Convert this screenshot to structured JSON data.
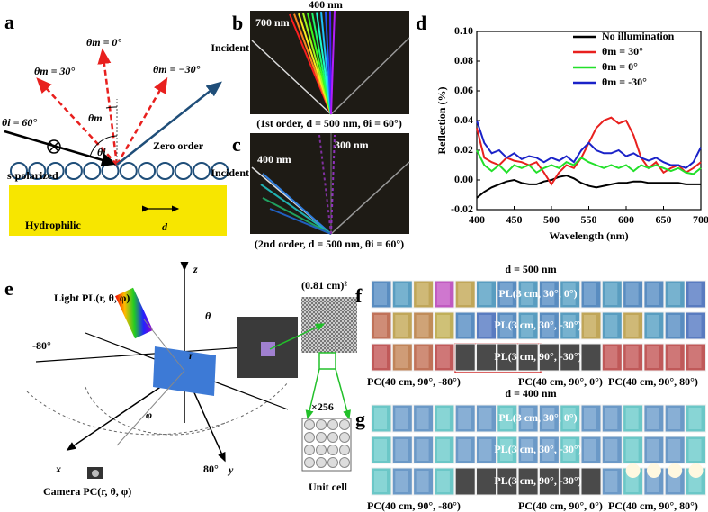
{
  "figure": {
    "panel_labels": [
      "a",
      "b",
      "c",
      "d",
      "e",
      "f",
      "g"
    ],
    "a": {
      "theta_m0": "θm = 0°",
      "theta_m30": "θm = 30°",
      "theta_mn30": "θm = −30°",
      "theta_i60": "θi = 60°",
      "theta_m": "θm",
      "theta_i": "θi",
      "s_polarized": "s-polarized",
      "zero_order": "Zero order",
      "substrate": "Hydrophilic",
      "period": "d"
    },
    "b": {
      "short": "400 nm",
      "long": "700 nm",
      "incident": "Incident",
      "caption": "(1st order, d = 500 nm, θi = 60°)"
    },
    "c": {
      "short": "300 nm",
      "long": "400 nm",
      "incident": "Incident",
      "caption": "(2nd order, d = 500 nm, θi = 60°)"
    },
    "e": {
      "z": "z",
      "x": "x",
      "y": "y",
      "light": "Light PL(r, θ, φ)",
      "theta": "θ",
      "phi": "φ",
      "r": "r",
      "neg80": "-80°",
      "pos80": "80°",
      "camera": "Camera PC(r, θ, φ)",
      "area": "(0.81 cm)²",
      "repeat": "×256",
      "unit_cell": "Unit cell"
    },
    "f": {
      "title": "d = 500 nm",
      "rows": [
        "PL(3 cm, 30°, 0°)",
        "PL(3 cm, 30°, -30°)",
        "PL(3 cm, 90°, -30°)"
      ],
      "cameras": [
        "PC(40 cm, 90°, -80°)",
        "PC(40 cm, 90°, 0°)",
        "PC(40 cm, 90°, 80°)"
      ]
    },
    "g": {
      "title": "d = 400 nm",
      "rows": [
        "PL(3 cm, 30°, 0°)",
        "PL(3 cm, 30°, -30°)",
        "PL(3 cm, 90°, -30°)"
      ],
      "cameras": [
        "PC(40 cm, 90°, -80°)",
        "PC(40 cm, 90°, 0°)",
        "PC(40 cm, 90°, 80°)"
      ]
    }
  },
  "chart_data": {
    "type": "line",
    "xlabel": "Wavelength (nm)",
    "ylabel": "Reflection (%)",
    "x": [
      400,
      410,
      420,
      430,
      440,
      450,
      460,
      470,
      480,
      490,
      500,
      510,
      520,
      530,
      540,
      550,
      560,
      570,
      580,
      590,
      600,
      610,
      620,
      630,
      640,
      650,
      660,
      670,
      680,
      690,
      700
    ],
    "series": [
      {
        "name": "No illumination",
        "color": "#000000",
        "values": [
          -0.012,
          -0.008,
          -0.005,
          -0.003,
          -0.001,
          0,
          -0.002,
          -0.003,
          -0.003,
          -0.001,
          0,
          0.002,
          0.003,
          0.001,
          -0.002,
          -0.004,
          -0.005,
          -0.004,
          -0.003,
          -0.002,
          -0.002,
          -0.001,
          -0.001,
          -0.002,
          -0.002,
          -0.002,
          -0.002,
          -0.002,
          -0.003,
          -0.003,
          -0.003
        ]
      },
      {
        "name": "θm = 30°",
        "color": "#e8201e",
        "values": [
          0.035,
          0.015,
          0.012,
          0.01,
          0.015,
          0.013,
          0.012,
          0.01,
          0.012,
          0.005,
          -0.003,
          0.005,
          0.01,
          0.008,
          0.015,
          0.025,
          0.035,
          0.04,
          0.042,
          0.038,
          0.04,
          0.03,
          0.015,
          0.008,
          0.012,
          0.005,
          0.008,
          0.01,
          0.005,
          0.008,
          0.012
        ]
      },
      {
        "name": "θm = 0°",
        "color": "#22e02a",
        "values": [
          0.02,
          0.01,
          0.006,
          0.01,
          0.005,
          0.01,
          0.008,
          0.01,
          0.005,
          0.008,
          0.01,
          0.008,
          0.012,
          0.01,
          0.015,
          0.012,
          0.01,
          0.008,
          0.01,
          0.008,
          0.01,
          0.006,
          0.01,
          0.008,
          0.01,
          0.008,
          0.006,
          0.008,
          0.005,
          0.004,
          0.008
        ]
      },
      {
        "name": "θm = -30°",
        "color": "#1a22c8",
        "values": [
          0.04,
          0.025,
          0.018,
          0.02,
          0.015,
          0.018,
          0.014,
          0.016,
          0.015,
          0.012,
          0.015,
          0.013,
          0.016,
          0.012,
          0.02,
          0.025,
          0.02,
          0.018,
          0.018,
          0.02,
          0.016,
          0.018,
          0.015,
          0.013,
          0.015,
          0.012,
          0.01,
          0.01,
          0.008,
          0.012,
          0.022
        ]
      }
    ],
    "xlim": [
      400,
      700
    ],
    "ylim": [
      -0.02,
      0.1
    ],
    "xticks": [
      400,
      450,
      500,
      550,
      600,
      650,
      700
    ],
    "yticks": [
      -0.02,
      {
        "value": 0,
        "label": "0.00"
      },
      0.02,
      0.04,
      0.06,
      0.08,
      {
        "value": 0.1,
        "label": "0.10"
      }
    ],
    "legend": "upper right"
  }
}
